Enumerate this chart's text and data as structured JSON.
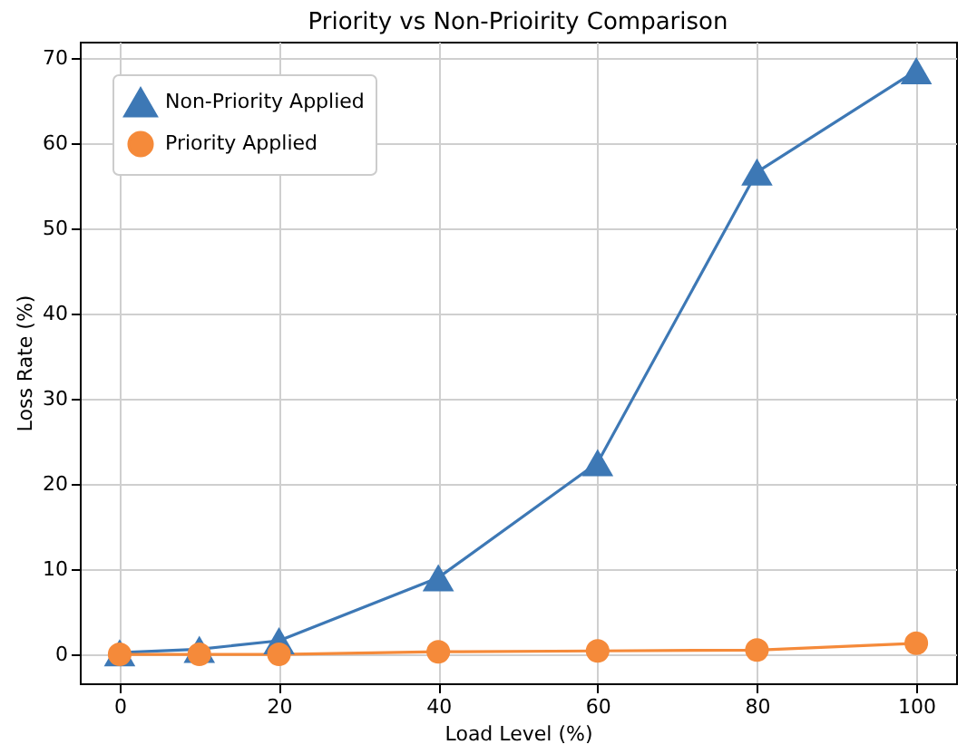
{
  "chart_data": {
    "type": "line",
    "title": "Priority vs Non-Prioirity Comparison",
    "xlabel": "Load Level (%)",
    "ylabel": "Loss Rate (%)",
    "x": [
      0,
      10,
      20,
      40,
      60,
      80,
      100
    ],
    "series": [
      {
        "name": "Non-Priority Applied",
        "color": "#3d78b5",
        "marker": "triangle",
        "values": [
          0.2,
          0.6,
          1.6,
          9,
          22.5,
          56.6,
          68.5
        ]
      },
      {
        "name": "Priority Applied",
        "color": "#f58a3a",
        "marker": "circle",
        "values": [
          0,
          0,
          0,
          0.3,
          0.4,
          0.5,
          1.3
        ]
      }
    ],
    "xlim": [
      -5,
      105
    ],
    "xticks": [
      0,
      20,
      40,
      60,
      80,
      100
    ],
    "ylim": [
      -3.4,
      71.9
    ],
    "yticks": [
      0,
      10,
      20,
      30,
      40,
      50,
      60,
      70
    ],
    "grid": true,
    "legend": "top left",
    "line_style": "solid"
  }
}
